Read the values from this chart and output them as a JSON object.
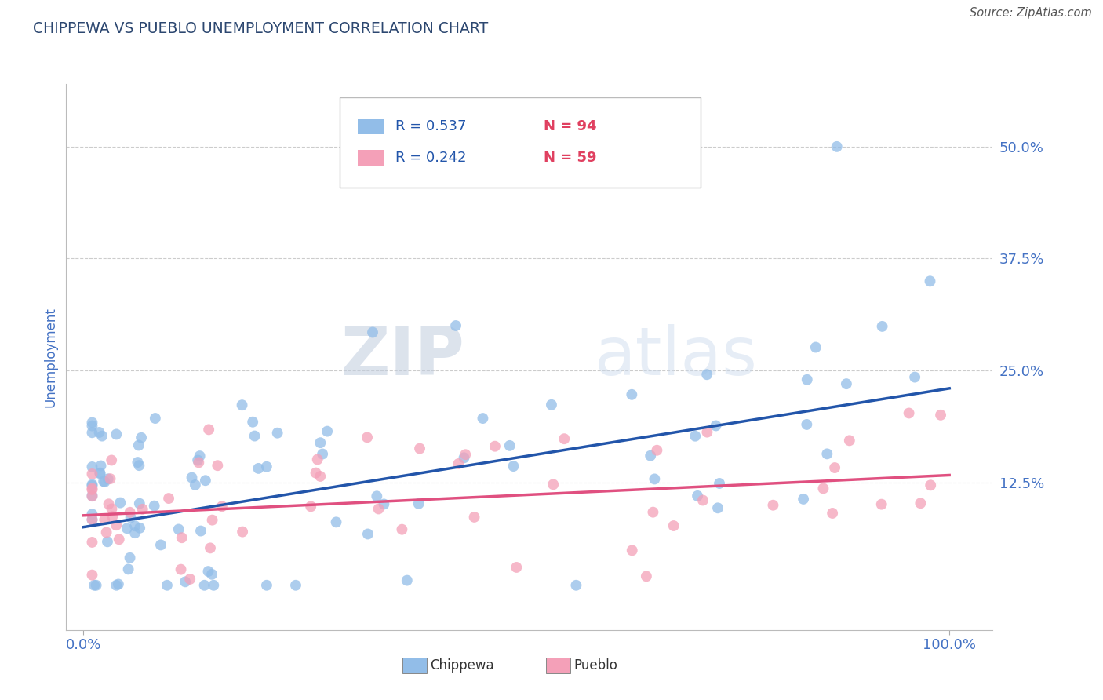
{
  "title": "CHIPPEWA VS PUEBLO UNEMPLOYMENT CORRELATION CHART",
  "source": "Source: ZipAtlas.com",
  "ylabel": "Unemployment",
  "chippewa_color": "#92BDE8",
  "pueblo_color": "#F4A0B8",
  "chippewa_line_color": "#2255AA",
  "pueblo_line_color": "#E05080",
  "r_chippewa": 0.537,
  "n_chippewa": 94,
  "r_pueblo": 0.242,
  "n_pueblo": 59,
  "watermark_zip": "ZIP",
  "watermark_atlas": "atlas",
  "title_color": "#2C4770",
  "axis_label_color": "#4472C4",
  "tick_color": "#4472C4",
  "background_color": "#FFFFFF",
  "grid_color": "#CCCCCC",
  "ytick_vals": [
    0.0,
    0.125,
    0.25,
    0.375,
    0.5
  ],
  "ytick_labels": [
    "",
    "12.5%",
    "25.0%",
    "37.5%",
    "50.0%"
  ],
  "xtick_vals": [
    0.0,
    1.0
  ],
  "xtick_labels": [
    "0.0%",
    "100.0%"
  ],
  "xlim": [
    -0.02,
    1.05
  ],
  "ylim": [
    -0.04,
    0.57
  ],
  "chip_intercept": 0.075,
  "chip_slope": 0.155,
  "pub_intercept": 0.088,
  "pub_slope": 0.045
}
